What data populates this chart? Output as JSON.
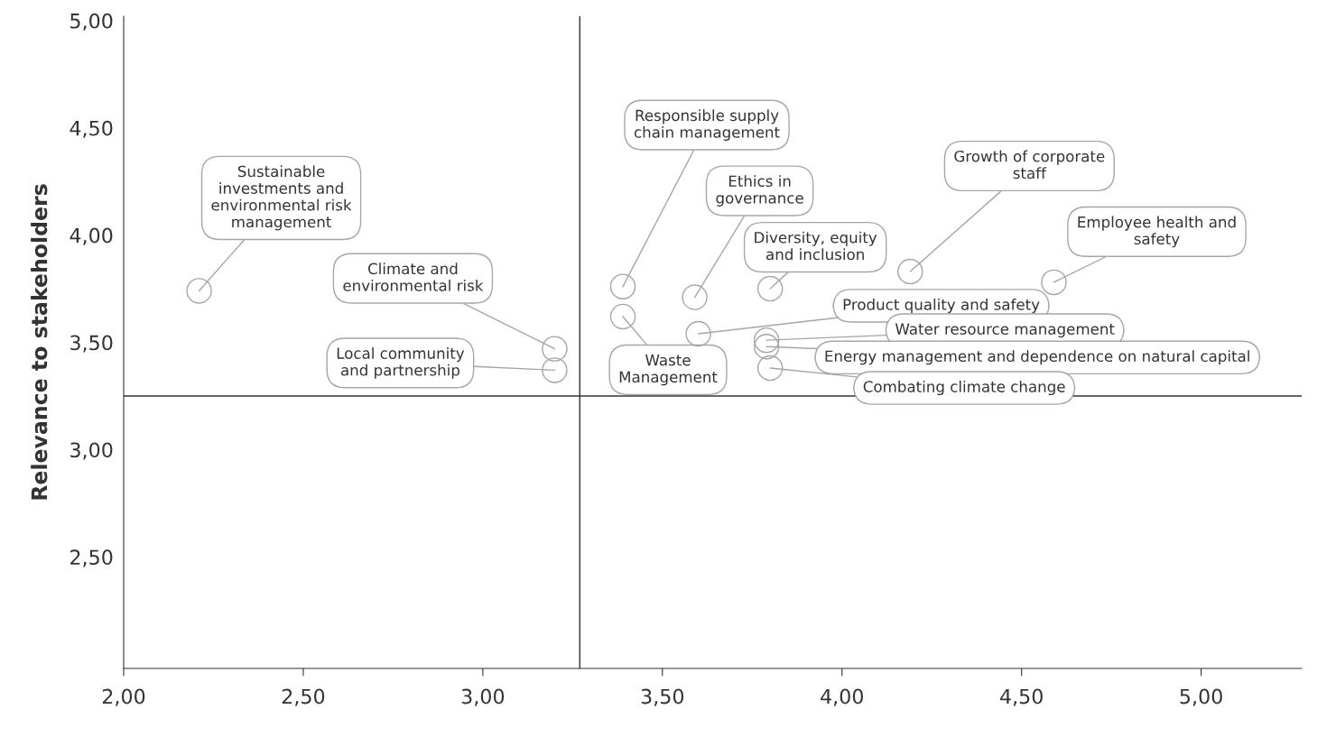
{
  "chart_data": {
    "type": "scatter",
    "ylabel": "Relevance to stakeholders",
    "series": [
      {
        "color": "#a6a6a6",
        "x": [
          2.21,
          3.2,
          3.2,
          3.39,
          3.39,
          3.59,
          3.8,
          4.19,
          4.59,
          3.6,
          3.79,
          3.79,
          3.8
        ],
        "values": [
          3.75,
          3.48,
          3.38,
          3.77,
          3.63,
          3.72,
          3.76,
          3.84,
          3.79,
          3.55,
          3.52,
          3.49,
          3.39
        ]
      }
    ],
    "annotations": [
      {
        "text": "Sustainable\ninvestments and\nenvironmental risk\nmanagement",
        "x": 2.21,
        "y": 3.75
      },
      {
        "text": "Climate and\nenvironmental risk",
        "x": 3.2,
        "y": 3.48
      },
      {
        "text": "Local community\nand partnership",
        "x": 3.2,
        "y": 3.38
      },
      {
        "text": "Responsible supply\nchain management",
        "x": 3.39,
        "y": 3.77
      },
      {
        "text": "Waste\nManagement",
        "x": 3.39,
        "y": 3.63
      },
      {
        "text": "Ethics in\ngovernance",
        "x": 3.59,
        "y": 3.72
      },
      {
        "text": "Diversity, equity\nand inclusion",
        "x": 3.8,
        "y": 3.76
      },
      {
        "text": "Growth of corporate\nstaff",
        "x": 4.19,
        "y": 3.84
      },
      {
        "text": "Employee health and\nsafety",
        "x": 4.59,
        "y": 3.79
      },
      {
        "text": "Product quality and safety",
        "x": 3.6,
        "y": 3.55
      },
      {
        "text": "Water resource management",
        "x": 3.79,
        "y": 3.52
      },
      {
        "text": "Energy management and dependence on natural capital",
        "x": 3.79,
        "y": 3.49
      },
      {
        "text": "Combating climate change",
        "x": 3.8,
        "y": 3.39
      }
    ],
    "ref_lines": [
      {
        "axis": "x",
        "value": 3.27,
        "color": "#333333"
      },
      {
        "axis": "y",
        "value": 3.26,
        "color": "#333333"
      }
    ],
    "xlim": [
      2.0,
      5.28
    ],
    "ylim": [
      1.99,
      5.03
    ],
    "xticks": [
      {
        "value": 2.0,
        "label": "2,00"
      },
      {
        "value": 2.5,
        "label": "2,50"
      },
      {
        "value": 3.0,
        "label": "3,00"
      },
      {
        "value": 3.5,
        "label": "3,50"
      },
      {
        "value": 4.0,
        "label": "4,00"
      },
      {
        "value": 4.5,
        "label": "4,50"
      },
      {
        "value": 5.0,
        "label": "5,00"
      }
    ],
    "yticks": [
      {
        "value": 2.5,
        "label": "2,50"
      },
      {
        "value": 3.0,
        "label": "3,00"
      },
      {
        "value": 3.5,
        "label": "3,50"
      },
      {
        "value": 4.0,
        "label": "4,00"
      },
      {
        "value": 4.5,
        "label": "4,50"
      },
      {
        "value": 5.0,
        "label": "5,00"
      }
    ],
    "marker": "circle"
  }
}
